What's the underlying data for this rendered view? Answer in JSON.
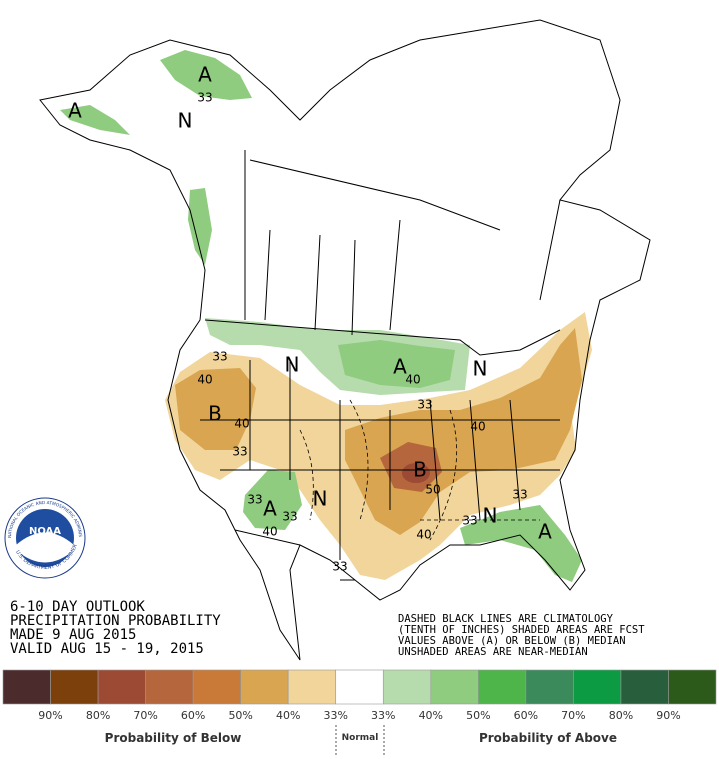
{
  "header": {
    "lines": [
      "6-10 DAY OUTLOOK",
      "PRECIPITATION PROBABILITY",
      "MADE  9 AUG 2015",
      "VALID  AUG 15 - 19, 2015"
    ]
  },
  "notes": [
    "DASHED BLACK LINES ARE CLIMATOLOGY",
    "(TENTH OF INCHES) SHADED AREAS ARE FCST",
    "VALUES ABOVE (A) OR BELOW (B) MEDIAN",
    "UNSHADED AREAS ARE NEAR-MEDIAN"
  ],
  "logo": {
    "name": "NOAA",
    "ring_top": "NATIONAL OCEANIC AND ATMOSPHERIC ADMINISTRATION",
    "ring_bottom": "U.S. DEPARTMENT OF COMMERCE"
  },
  "map_labels": [
    "A",
    "N",
    "A",
    "N",
    "A",
    "N",
    "B",
    "B",
    "A",
    "N",
    "N",
    "A",
    "33",
    "40",
    "40",
    "33",
    "33",
    "33",
    "40",
    "33",
    "40",
    "50",
    "40",
    "33",
    "40",
    "33",
    "33",
    "33"
  ],
  "legend": {
    "colors": [
      "#4b2b2b",
      "#7b400c",
      "#9c4a34",
      "#b5663c",
      "#c97a38",
      "#d9a551",
      "#f1d59b",
      "#ffffff",
      "#b6dcae",
      "#8fcc7f",
      "#4db549",
      "#3b8a5c",
      "#0c9a42",
      "#285e3b",
      "#2b5a1b"
    ],
    "labels": [
      "90%",
      "80%",
      "70%",
      "60%",
      "50%",
      "40%",
      "33%",
      "33%",
      "40%",
      "50%",
      "60%",
      "70%",
      "80%",
      "90%"
    ],
    "below": "Probability of Below",
    "normal": "Normal",
    "above": "Probability of Above"
  }
}
